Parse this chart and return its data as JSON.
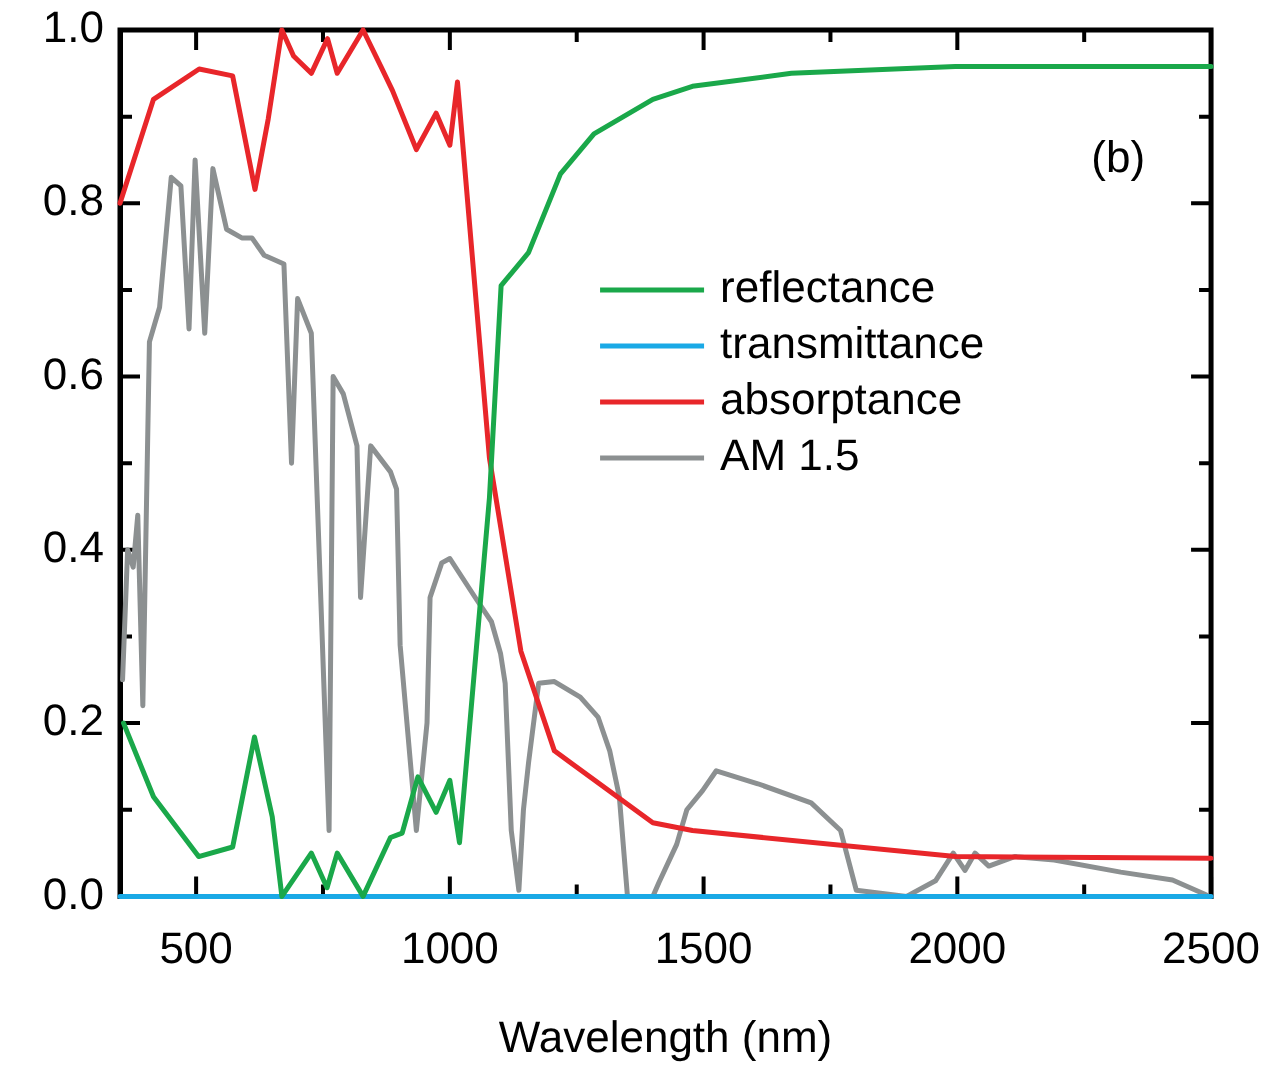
{
  "chart_data": {
    "type": "line",
    "xlabel": "Wavelength (nm)",
    "xlim": [
      350,
      2500
    ],
    "ylim": [
      0,
      1
    ],
    "xticks": [
      500,
      {
        "value": 750,
        "label": null
      },
      1000,
      {
        "value": 1250,
        "label": null
      },
      1500,
      {
        "value": 1750,
        "label": null
      },
      2000,
      {
        "value": 2250,
        "label": null
      },
      2500
    ],
    "yticks": [
      {
        "value": 0,
        "label": "0.0"
      },
      {
        "value": 0.1,
        "label": null
      },
      0.2,
      {
        "value": 0.3,
        "label": null
      },
      0.4,
      {
        "value": 0.5,
        "label": null
      },
      0.6,
      {
        "value": 0.7,
        "label": null
      },
      0.8,
      {
        "value": 0.9,
        "label": null
      },
      {
        "value": 1,
        "label": "1.0"
      }
    ],
    "grid": false,
    "legend": "right",
    "marker": "none",
    "line_style": "solid",
    "annotations": [
      "(b)"
    ],
    "series": [
      {
        "name": "reflectance",
        "color": "#1aa84a",
        "x": [
          357,
          416,
          505,
          572,
          615,
          650,
          669,
          727,
          758,
          778,
          829,
          883,
          906,
          937,
          973,
          1000,
          1019,
          1078,
          1101,
          1155,
          1218,
          1284,
          1400,
          1478,
          1673,
          1996,
          2500
        ],
        "values": [
          0.2,
          0.115,
          0.046,
          0.057,
          0.184,
          0.092,
          0.0,
          0.05,
          0.01,
          0.05,
          0.0,
          0.068,
          0.073,
          0.138,
          0.097,
          0.134,
          0.062,
          0.46,
          0.705,
          0.743,
          0.834,
          0.88,
          0.92,
          0.935,
          0.95,
          0.958,
          0.958
        ]
      },
      {
        "name": "transmittance",
        "color": "#1aa9e6",
        "x": [
          350,
          2500
        ],
        "values": [
          0.0,
          0.0
        ]
      },
      {
        "name": "absorptance",
        "color": "#e8262a",
        "x": [
          350,
          416,
          506,
          572,
          616,
          642,
          669,
          692,
          727,
          759,
          778,
          829,
          864,
          887,
          934,
          973,
          1000,
          1015,
          1078,
          1140,
          1206,
          1400,
          1478,
          1996,
          2500
        ],
        "values": [
          0.8,
          0.92,
          0.955,
          0.947,
          0.816,
          0.897,
          1.0,
          0.97,
          0.95,
          0.99,
          0.95,
          1.0,
          0.958,
          0.93,
          0.862,
          0.904,
          0.867,
          0.94,
          0.506,
          0.283,
          0.168,
          0.085,
          0.076,
          0.046,
          0.044
        ]
      },
      {
        "name": "AM 1.5",
        "color": "#8c9091",
        "x": [
          355,
          365,
          376,
          385,
          395,
          408,
          428,
          451,
          470,
          486,
          498,
          517,
          533,
          560,
          590,
          610,
          634,
          673,
          688,
          700,
          727,
          762,
          770,
          790,
          817,
          824,
          844,
          883,
          895,
          902,
          934,
          955,
          961,
          984,
          1000,
          1050,
          1082,
          1100,
          1109,
          1121,
          1136,
          1145,
          1155,
          1175,
          1206,
          1257,
          1292,
          1315,
          1334,
          1350,
          1400,
          1412,
          1447,
          1467,
          1498,
          1525,
          1607,
          1712,
          1770,
          1801,
          1900,
          1957,
          1992,
          2015,
          2035,
          2062,
          2113,
          2191,
          2322,
          2424,
          2490
        ],
        "values": [
          0.25,
          0.4,
          0.38,
          0.44,
          0.22,
          0.64,
          0.68,
          0.83,
          0.82,
          0.655,
          0.85,
          0.65,
          0.84,
          0.77,
          0.76,
          0.76,
          0.74,
          0.73,
          0.5,
          0.69,
          0.65,
          0.076,
          0.6,
          0.58,
          0.52,
          0.345,
          0.52,
          0.49,
          0.47,
          0.29,
          0.076,
          0.2,
          0.345,
          0.385,
          0.39,
          0.345,
          0.317,
          0.28,
          0.246,
          0.076,
          0.007,
          0.1,
          0.154,
          0.246,
          0.248,
          0.23,
          0.207,
          0.168,
          0.115,
          0.0,
          0.0,
          0.016,
          0.06,
          0.1,
          0.122,
          0.145,
          0.13,
          0.108,
          0.076,
          0.007,
          0.0,
          0.018,
          0.05,
          0.03,
          0.05,
          0.035,
          0.046,
          0.042,
          0.028,
          0.019,
          0.002
        ]
      }
    ]
  }
}
